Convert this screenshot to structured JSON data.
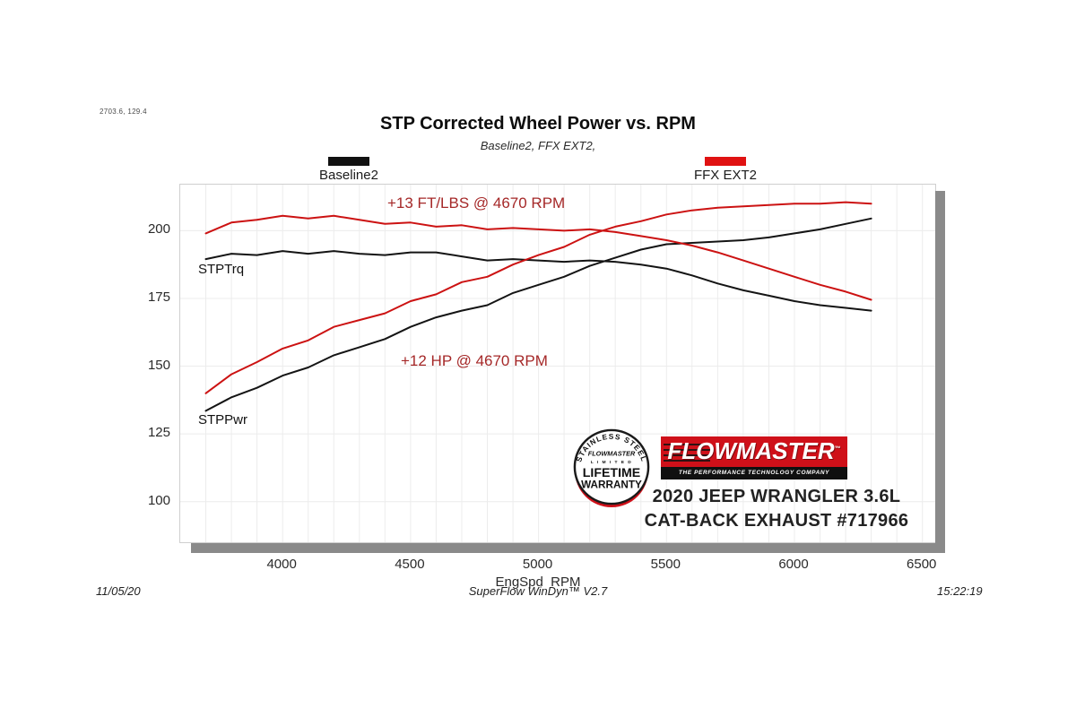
{
  "page": {
    "corner_readout": "2703.6, 129.4",
    "title": "STP Corrected Wheel Power vs. RPM",
    "subtitle": "Baseline2, FFX EXT2,",
    "footer": {
      "date": "11/05/20",
      "software": "SuperFlow WinDyn™ V2.7",
      "time": "15:22:19"
    }
  },
  "legend": {
    "baseline": {
      "label": "Baseline2",
      "color": "#111111"
    },
    "ffx": {
      "label": "FFX EXT2",
      "color": "#e01212"
    }
  },
  "annotations": {
    "torque_gain": "+13 FT/LBS @ 4670 RPM",
    "power_gain": "+12 HP @ 4670 RPM",
    "torque_curve_label": "STPTrq",
    "power_curve_label": "STPPwr",
    "accent_color": "#a52828"
  },
  "badge": {
    "arc_top": "STAINLESS STEEL",
    "brand": "FLOWMASTER",
    "limited": "L I M I T E D",
    "lifetime": "LIFETIME",
    "warranty": "WARRANTY"
  },
  "logo": {
    "brand": "FLOWMASTER",
    "tm": "™",
    "tagline": "THE PERFORMANCE TECHNOLOGY COMPANY",
    "red": "#cf1019"
  },
  "vehicle": {
    "line1": "2020 JEEP WRANGLER 3.6L",
    "line2": "CAT-BACK EXHAUST #717966"
  },
  "chart_data": {
    "type": "line",
    "title": "STP Corrected Wheel Power vs. RPM",
    "subtitle": "Baseline2, FFX EXT2,",
    "xlabel": "EngSpd  RPM",
    "ylabel": "",
    "xlim": [
      3600,
      6550
    ],
    "ylim": [
      85,
      217
    ],
    "x_ticks": [
      4000,
      4500,
      5000,
      5500,
      6000,
      6500
    ],
    "y_ticks": [
      100,
      125,
      150,
      175,
      200
    ],
    "grid": {
      "x_start": 3700,
      "x_end": 6500,
      "x_step": 100,
      "y_start": 100,
      "y_end": 200,
      "y_step": 25,
      "color": "#ececec"
    },
    "legend_position": "top",
    "x": [
      3700,
      3800,
      3900,
      4000,
      4100,
      4200,
      4300,
      4400,
      4500,
      4600,
      4700,
      4800,
      4900,
      5000,
      5100,
      5200,
      5300,
      5400,
      5500,
      5600,
      5700,
      5800,
      5900,
      6000,
      6100,
      6200,
      6300
    ],
    "series": [
      {
        "name": "Baseline2 STPTrq",
        "units": "ft-lbs",
        "color": "#141414",
        "values": [
          189.5,
          191.5,
          191,
          192.5,
          191.5,
          192.5,
          191.5,
          191,
          192,
          192,
          190.5,
          189,
          189.5,
          189,
          188.5,
          189,
          188.5,
          187.5,
          186,
          183.5,
          180.5,
          178,
          176,
          174,
          172.5,
          171.5,
          170.5
        ]
      },
      {
        "name": "Baseline2 STPPwr",
        "units": "hp",
        "color": "#141414",
        "values": [
          133.5,
          138.5,
          142,
          146.5,
          149.5,
          154,
          157,
          160,
          164.5,
          168,
          170.5,
          172.5,
          177,
          180,
          183,
          187,
          190,
          193,
          195,
          195.5,
          196,
          196.5,
          197.5,
          199,
          200.5,
          202.5,
          204.5
        ]
      },
      {
        "name": "FFX EXT2 STPTrq",
        "units": "ft-lbs",
        "color": "#cc1212",
        "values": [
          199,
          203,
          204,
          205.5,
          204.5,
          205.5,
          204,
          202.5,
          203,
          201.5,
          202,
          200.5,
          201,
          200.5,
          200,
          200.5,
          199.5,
          198,
          196.5,
          194.5,
          192,
          189,
          186,
          183,
          180,
          177.5,
          174.5
        ]
      },
      {
        "name": "FFX EXT2 STPPwr",
        "units": "hp",
        "color": "#cc1212",
        "values": [
          140,
          147,
          151.5,
          156.5,
          159.5,
          164.5,
          167,
          169.5,
          174,
          176.5,
          181,
          183,
          187.5,
          191,
          194,
          198.5,
          201.5,
          203.5,
          206,
          207.5,
          208.5,
          209,
          209.5,
          210,
          210,
          210.5,
          210
        ]
      }
    ]
  }
}
